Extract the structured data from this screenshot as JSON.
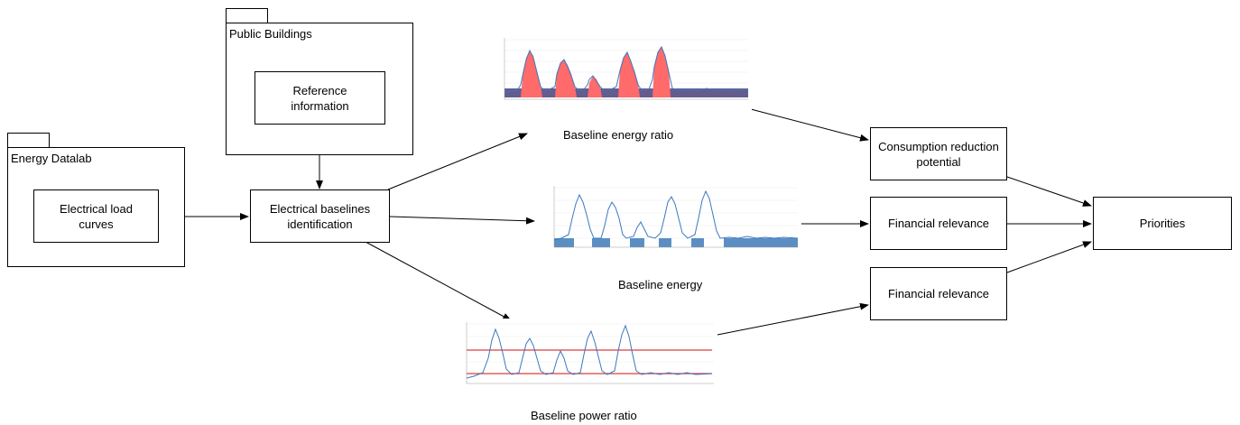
{
  "packages": {
    "public_buildings": "Public Buildings",
    "energy_datalab": "Energy Datalab"
  },
  "nodes": {
    "reference_information": "Reference\ninformation",
    "electrical_load_curves": "Electrical load\ncurves",
    "electrical_baselines_identification": "Electrical baselines\nidentification",
    "consumption_reduction_potential": "Consumption reduction\npotential",
    "financial_relevance_1": "Financial relevance",
    "financial_relevance_2": "Financial relevance",
    "priorities": "Priorities"
  },
  "captions": {
    "baseline_energy_ratio": "Baseline energy ratio",
    "baseline_energy": "Baseline energy",
    "baseline_power_ratio": "Baseline power ratio"
  },
  "colors": {
    "series_line": "#3b78c0",
    "fill_red": "#ff6a6a",
    "fill_dark": "#4a3f7a",
    "fill_blue": "#5b8fc4",
    "threshold_red": "#e04040"
  }
}
